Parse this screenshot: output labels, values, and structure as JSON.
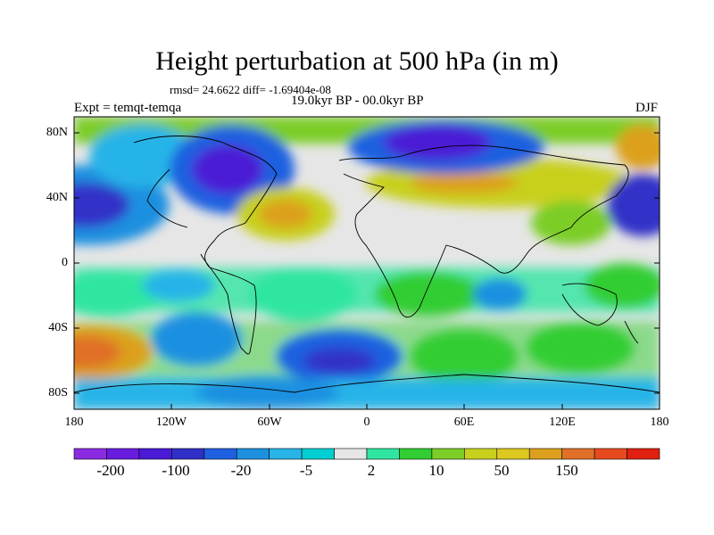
{
  "title": "Height perturbation at 500 hPa (in m)",
  "stats": "rmsd= 24.6622 diff= -1.69404e-08",
  "period": "19.0kyr BP - 00.0kyr BP",
  "experiment": "Expt = temqt-temqa",
  "season": "DJF",
  "lat_labels": [
    "80N",
    "40N",
    "0",
    "40S",
    "80S"
  ],
  "lon_labels": [
    "180",
    "120W",
    "60W",
    "0",
    "60E",
    "120E",
    "180"
  ],
  "colorbar": {
    "colors": [
      "#8a2be2",
      "#6a1be0",
      "#4b1ad6",
      "#3030c8",
      "#1e60e0",
      "#1e90e0",
      "#28b4e8",
      "#00ced1",
      "#e6e6e6",
      "#2ee6a0",
      "#32cd32",
      "#7ccd28",
      "#c8d01e",
      "#dcc81e",
      "#dca01e",
      "#e07028",
      "#e84a20",
      "#e02010"
    ],
    "labels": [
      "-200",
      "-100",
      "-20",
      "-5",
      "2",
      "10",
      "50",
      "150"
    ]
  }
}
